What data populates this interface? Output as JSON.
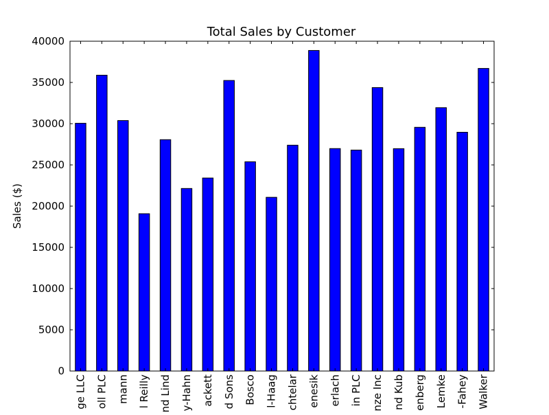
{
  "chart_data": {
    "type": "bar",
    "title": "Total Sales by Customer",
    "xlabel": "",
    "ylabel": "Sales ($)",
    "ylim": [
      0,
      40000
    ],
    "yticks": [
      0,
      5000,
      10000,
      15000,
      20000,
      25000,
      30000,
      35000,
      40000
    ],
    "grid": false,
    "bar_color": "#0000ff",
    "categories": [
      "ge LLC",
      "oll PLC",
      "mann",
      "l Reilly",
      "nd Lind",
      "y-Hahn",
      "ackett",
      "d Sons",
      "Bosco",
      "l-Haag",
      "chtelar",
      "enesik",
      "erlach",
      "in PLC",
      "nze Inc",
      "nd Kub",
      "enberg",
      "Lemke",
      "-Fahey",
      "Walker"
    ],
    "values": [
      30050,
      35880,
      30380,
      19080,
      28060,
      22140,
      23410,
      35240,
      25380,
      21070,
      27390,
      38880,
      26980,
      26800,
      34380,
      26970,
      29560,
      31940,
      28960,
      36700
    ]
  }
}
